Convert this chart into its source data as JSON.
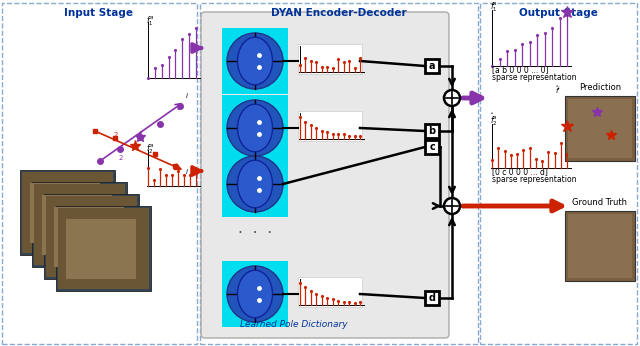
{
  "title_input": "Input Stage",
  "title_encoder": "DYAN Encoder-Decoder",
  "title_output": "Output Stage",
  "learned_pole": "Learned Pole Dictionary",
  "sparse1": "[a b 0 0 0 ... 0]",
  "sparse1_sub": "sparse representation",
  "sparse2": "[0 c 0 0 0 ... d]",
  "sparse2_sub": "sparse representation",
  "pred_label": "Prediction",
  "gt_label": "Ground Truth",
  "purple": "#8833aa",
  "dark_red": "#cc2200",
  "cyan_bg": "#00ddee",
  "blue_dark": "#003399",
  "section_border": "#88aacc",
  "enc_bg": "#e8e8e8",
  "white": "#ffffff",
  "black": "#000000",
  "pole_fill": "#2255bb",
  "pole_ellipse": "#1a4499",
  "input_box_bg": "#445566",
  "label_a": "a",
  "label_b": "b",
  "label_c": "c",
  "label_d": "d"
}
